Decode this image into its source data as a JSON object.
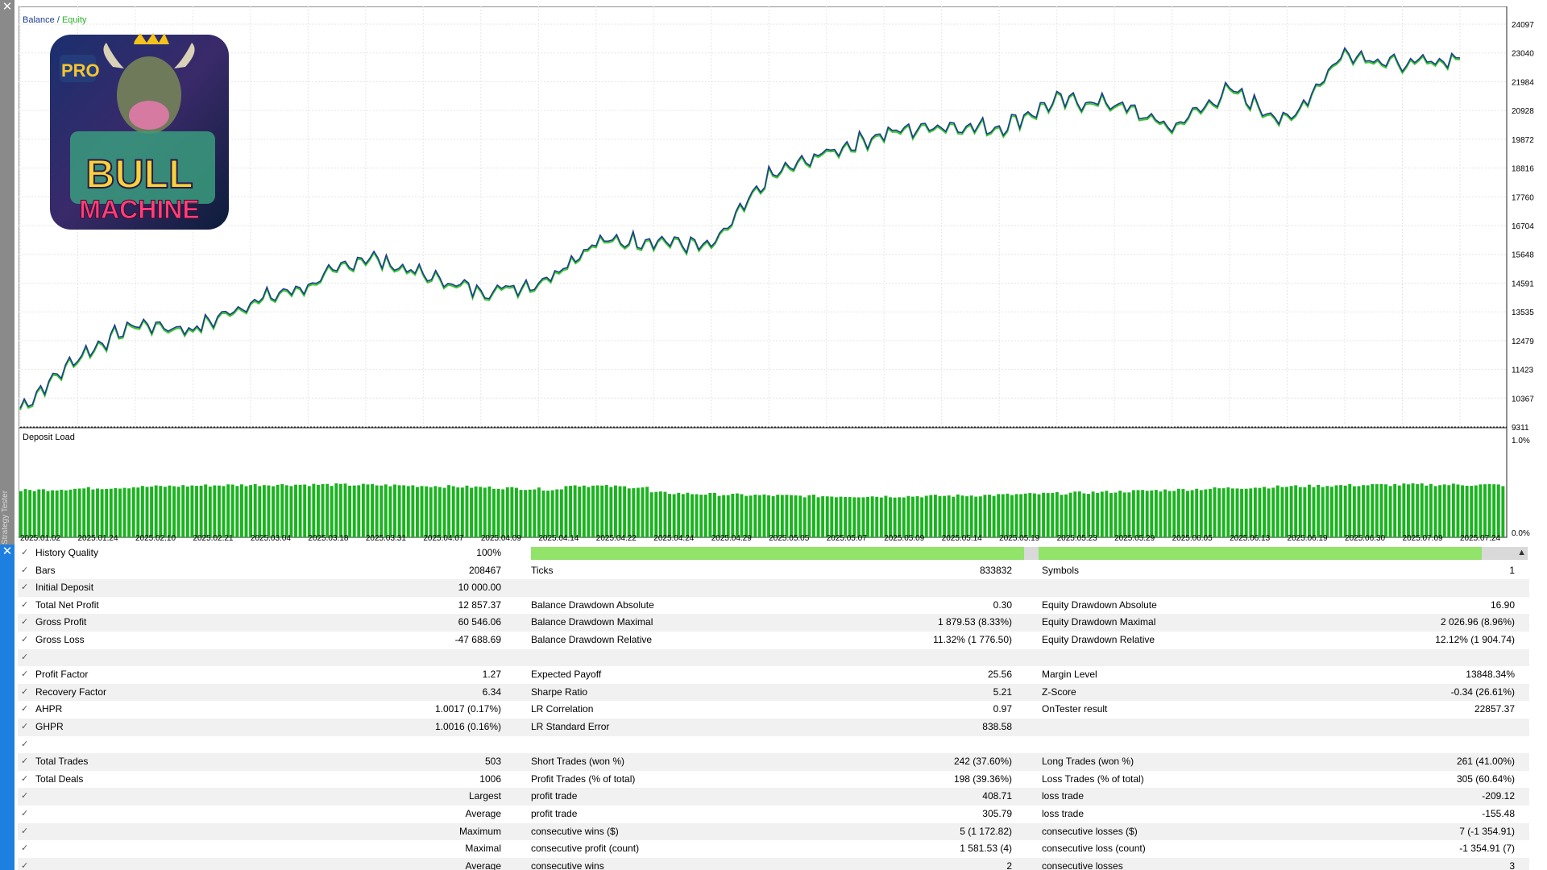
{
  "window": {
    "side_title": "Strategy Tester"
  },
  "chart": {
    "legend_balance": "Balance",
    "legend_sep": " / ",
    "legend_equity": "Equity",
    "subwindow_title": "Deposit Load",
    "logo": {
      "badge": "PRO",
      "line1": "BULL",
      "line2": "MACHINE"
    },
    "y_ticks": [
      "24097",
      "23040",
      "21984",
      "20928",
      "19872",
      "18816",
      "17760",
      "16704",
      "15648",
      "14591",
      "13535",
      "12479",
      "11423",
      "10367",
      "9311"
    ],
    "load_ticks": [
      "1.0%",
      "0.0%"
    ],
    "x_ticks": [
      "2025.01.02",
      "2025.01.24",
      "2025.02.10",
      "2025.02.21",
      "2025.03.04",
      "2025.03.18",
      "2025.03.31",
      "2025.04.07",
      "2025.04.09",
      "2025.04.14",
      "2025.04.22",
      "2025.04.24",
      "2025.04.29",
      "2025.05.05",
      "2025.05.07",
      "2025.05.09",
      "2025.05.14",
      "2025.05.19",
      "2025.05.23",
      "2025.05.29",
      "2025.06.05",
      "2025.06.13",
      "2025.06.19",
      "2025.06.30",
      "2025.07.09",
      "2025.07.24"
    ],
    "colors": {
      "balance": "#1b3d8f",
      "equity": "#37c62b",
      "load": "#19b41e",
      "grid": "#e6e6e6"
    }
  },
  "chart_data": {
    "type": "line",
    "title": "Balance / Equity",
    "series": [
      {
        "name": "Balance"
      },
      {
        "name": "Equity"
      }
    ],
    "x": [
      "2025.01.02",
      "2025.01.24",
      "2025.02.10",
      "2025.02.21",
      "2025.03.04",
      "2025.03.18",
      "2025.03.31",
      "2025.04.07",
      "2025.04.09",
      "2025.04.14",
      "2025.04.22",
      "2025.04.24",
      "2025.04.29",
      "2025.05.05",
      "2025.05.07",
      "2025.05.09",
      "2025.05.14",
      "2025.05.19",
      "2025.05.23",
      "2025.05.29",
      "2025.06.05",
      "2025.06.13",
      "2025.06.19",
      "2025.06.30",
      "2025.07.09",
      "2025.07.24"
    ],
    "values": [
      10000,
      11900,
      13100,
      12900,
      13900,
      14500,
      15600,
      14900,
      14300,
      14600,
      16100,
      16200,
      15900,
      18500,
      19400,
      20100,
      20400,
      20300,
      21300,
      21200,
      20300,
      21700,
      20500,
      23100,
      22600,
      22857
    ],
    "ylim": [
      9311,
      24097
    ],
    "grid": true,
    "deposit_load_ylim": [
      0,
      1.0
    ]
  },
  "report": {
    "rows": [
      {
        "c1l": "History Quality",
        "c1v": "100%",
        "bar": true
      },
      {
        "c1l": "Bars",
        "c1v": "208467",
        "c2l": "Ticks",
        "c2v": "833832",
        "c3l": "Symbols",
        "c3v": "1"
      },
      {
        "c1l": "Initial Deposit",
        "c1v": "10 000.00"
      },
      {
        "c1l": "Total Net Profit",
        "c1v": "12 857.37",
        "c2l": "Balance Drawdown Absolute",
        "c2v": "0.30",
        "c3l": "Equity Drawdown Absolute",
        "c3v": "16.90"
      },
      {
        "c1l": "Gross Profit",
        "c1v": "60 546.06",
        "c2l": "Balance Drawdown Maximal",
        "c2v": "1 879.53 (8.33%)",
        "c3l": "Equity Drawdown Maximal",
        "c3v": "2 026.96 (8.96%)"
      },
      {
        "c1l": "Gross Loss",
        "c1v": "-47 688.69",
        "c2l": "Balance Drawdown Relative",
        "c2v": "11.32% (1 776.50)",
        "c3l": "Equity Drawdown Relative",
        "c3v": "12.12% (1 904.74)"
      },
      {},
      {
        "c1l": "Profit Factor",
        "c1v": "1.27",
        "c2l": "Expected Payoff",
        "c2v": "25.56",
        "c3l": "Margin Level",
        "c3v": "13848.34%"
      },
      {
        "c1l": "Recovery Factor",
        "c1v": "6.34",
        "c2l": "Sharpe Ratio",
        "c2v": "5.21",
        "c3l": "Z-Score",
        "c3v": "-0.34 (26.61%)"
      },
      {
        "c1l": "AHPR",
        "c1v": "1.0017 (0.17%)",
        "c2l": "LR Correlation",
        "c2v": "0.97",
        "c3l": "OnTester result",
        "c3v": "22857.37"
      },
      {
        "c1l": "GHPR",
        "c1v": "1.0016 (0.16%)",
        "c2l": "LR Standard Error",
        "c2v": "838.58"
      },
      {},
      {
        "c1l": "Total Trades",
        "c1v": "503",
        "c2l": "Short Trades (won %)",
        "c2v": "242 (37.60%)",
        "c3l": "Long Trades (won %)",
        "c3v": "261 (41.00%)"
      },
      {
        "c1l": "Total Deals",
        "c1v": "1006",
        "c2l": "Profit Trades (% of total)",
        "c2v": "198 (39.36%)",
        "c3l": "Loss Trades (% of total)",
        "c3v": "305 (60.64%)"
      },
      {
        "c1r": "Largest",
        "c2l": "profit trade",
        "c2v": "408.71",
        "c3l": "loss trade",
        "c3v": "-209.12"
      },
      {
        "c1r": "Average",
        "c2l": "profit trade",
        "c2v": "305.79",
        "c3l": "loss trade",
        "c3v": "-155.48"
      },
      {
        "c1r": "Maximum",
        "c2l": "consecutive wins ($)",
        "c2v": "5 (1 172.82)",
        "c3l": "consecutive losses ($)",
        "c3v": "7 (-1 354.91)"
      },
      {
        "c1r": "Maximal",
        "c2l": "consecutive profit (count)",
        "c2v": "1 581.53 (4)",
        "c3l": "consecutive loss (count)",
        "c3v": "-1 354.91 (7)"
      },
      {
        "c1r": "Average",
        "c2l": "consecutive wins",
        "c2v": "2",
        "c3l": "consecutive losses",
        "c3v": "3"
      }
    ]
  }
}
